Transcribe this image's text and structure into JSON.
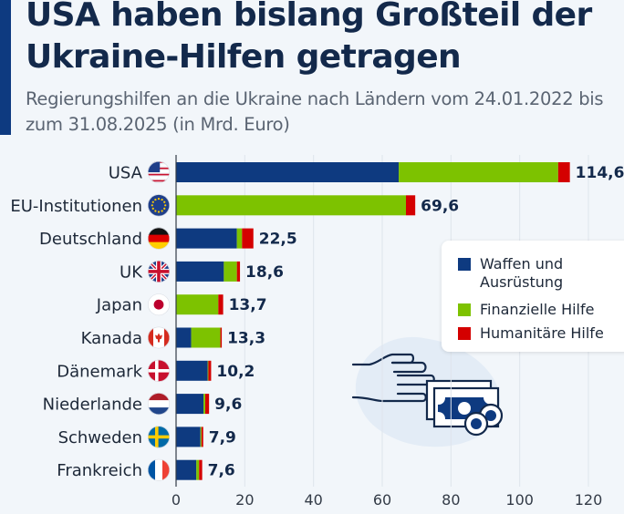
{
  "header": {
    "title": "USA haben bislang Großteil der Ukraine-Hilfen getragen",
    "subtitle": "Regierungshilfen an die Ukraine nach Ländern vom 24.01.2022 bis zum 31.08.2025 (in Mrd. Euro)"
  },
  "colors": {
    "accent": "#0e3a80",
    "waffen": "#0e3a80",
    "finanziell": "#7dc200",
    "humanitaer": "#d40000"
  },
  "chart_data": {
    "type": "bar",
    "orientation": "horizontal",
    "stacked": true,
    "title": "USA haben bislang Großteil der Ukraine-Hilfen getragen",
    "subtitle": "Regierungshilfen an die Ukraine nach Ländern vom 24.01.2022 bis zum 31.08.2025 (in Mrd. Euro)",
    "xlabel": "",
    "ylabel": "",
    "xlim": [
      0,
      120
    ],
    "xticks": [
      0,
      20,
      40,
      60,
      80,
      100,
      120
    ],
    "grid": true,
    "legend_position": "right",
    "categories": [
      "USA",
      "EU-Institutionen",
      "Deutschland",
      "UK",
      "Japan",
      "Kanada",
      "Dänemark",
      "Niederlande",
      "Schweden",
      "Frankreich"
    ],
    "flags": [
      "us-flag",
      "eu-flag",
      "de-flag",
      "uk-flag",
      "jp-flag",
      "ca-flag",
      "dk-flag",
      "nl-flag",
      "se-flag",
      "fr-flag"
    ],
    "series": [
      {
        "name": "Waffen und Ausrüstung",
        "color": "#0e3a80",
        "values": [
          64.8,
          0,
          17.7,
          13.9,
          0,
          4.4,
          9.2,
          8.0,
          7.1,
          5.9
        ]
      },
      {
        "name": "Finanzielle Hilfe",
        "color": "#7dc200",
        "values": [
          46.4,
          66.9,
          1.5,
          3.8,
          12.3,
          8.5,
          0.2,
          0.5,
          0.3,
          0.8
        ]
      },
      {
        "name": "Humanitäre Hilfe",
        "color": "#d40000",
        "values": [
          3.4,
          2.7,
          3.3,
          0.9,
          1.4,
          0.4,
          0.8,
          1.1,
          0.5,
          0.9
        ]
      }
    ],
    "totals": [
      114.6,
      69.6,
      22.5,
      18.6,
      13.7,
      13.3,
      10.2,
      9.6,
      7.9,
      7.6
    ],
    "total_labels": [
      "114,6",
      "69,6",
      "22,5",
      "18,6",
      "13,7",
      "13,3",
      "10,2",
      "9,6",
      "7,9",
      "7,6"
    ]
  },
  "legend": {
    "items": [
      {
        "label_line1": "Waffen und",
        "label_line2": "Ausrüstung"
      },
      {
        "label_line1": "Finanzielle Hilfe"
      },
      {
        "label_line1": "Humanitäre Hilfe"
      }
    ]
  },
  "illustration": {
    "icon": "hand-giving-money-icon"
  }
}
